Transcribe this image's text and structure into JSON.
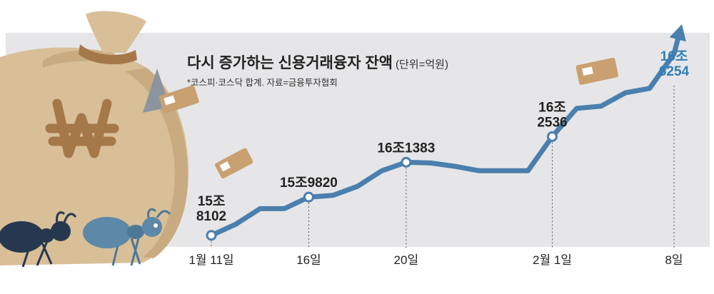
{
  "chart_data": {
    "type": "line",
    "title": "다시 증가하는 신용거래융자 잔액",
    "unit": "(단위=억원)",
    "note": "*코스피·코스닥 합계. 자료=금융투자협회",
    "xlabel": "",
    "ylabel": "",
    "ylim": [
      158000,
      167000
    ],
    "x_tick_labels": [
      "1월 11일",
      "16일",
      "20일",
      "2월 1일",
      "8일"
    ],
    "values": [
      158102,
      158600,
      159300,
      159300,
      159820,
      159900,
      160300,
      161000,
      161383,
      161350,
      161200,
      161000,
      161000,
      161000,
      162536,
      163800,
      163900,
      164500,
      164700,
      166254
    ],
    "annotations": [
      {
        "label": "15조 8102",
        "value": 158102,
        "tick": "1월 11일"
      },
      {
        "label": "15조9820",
        "value": 159820,
        "tick": "16일"
      },
      {
        "label": "16조1383",
        "value": 161383,
        "tick": "20일"
      },
      {
        "label": "16조 2536",
        "value": 162536,
        "tick": "2월 1일"
      },
      {
        "label": "16조 6254",
        "value": 166254,
        "tick": "8일"
      }
    ],
    "line_color": "#4a7fae",
    "highlight_color": "#2f7fb8"
  },
  "colors": {
    "panel": "#e6e6e8",
    "bag": "#d8bf98",
    "bag_shadow": "#c4a57a",
    "won_symbol": "#a5784a",
    "ant_dark": "#26384f",
    "ant_light": "#5d88a8"
  },
  "icons": [
    "money-bag-icon",
    "won-symbol-icon",
    "ant-icon",
    "banknote-icon"
  ]
}
